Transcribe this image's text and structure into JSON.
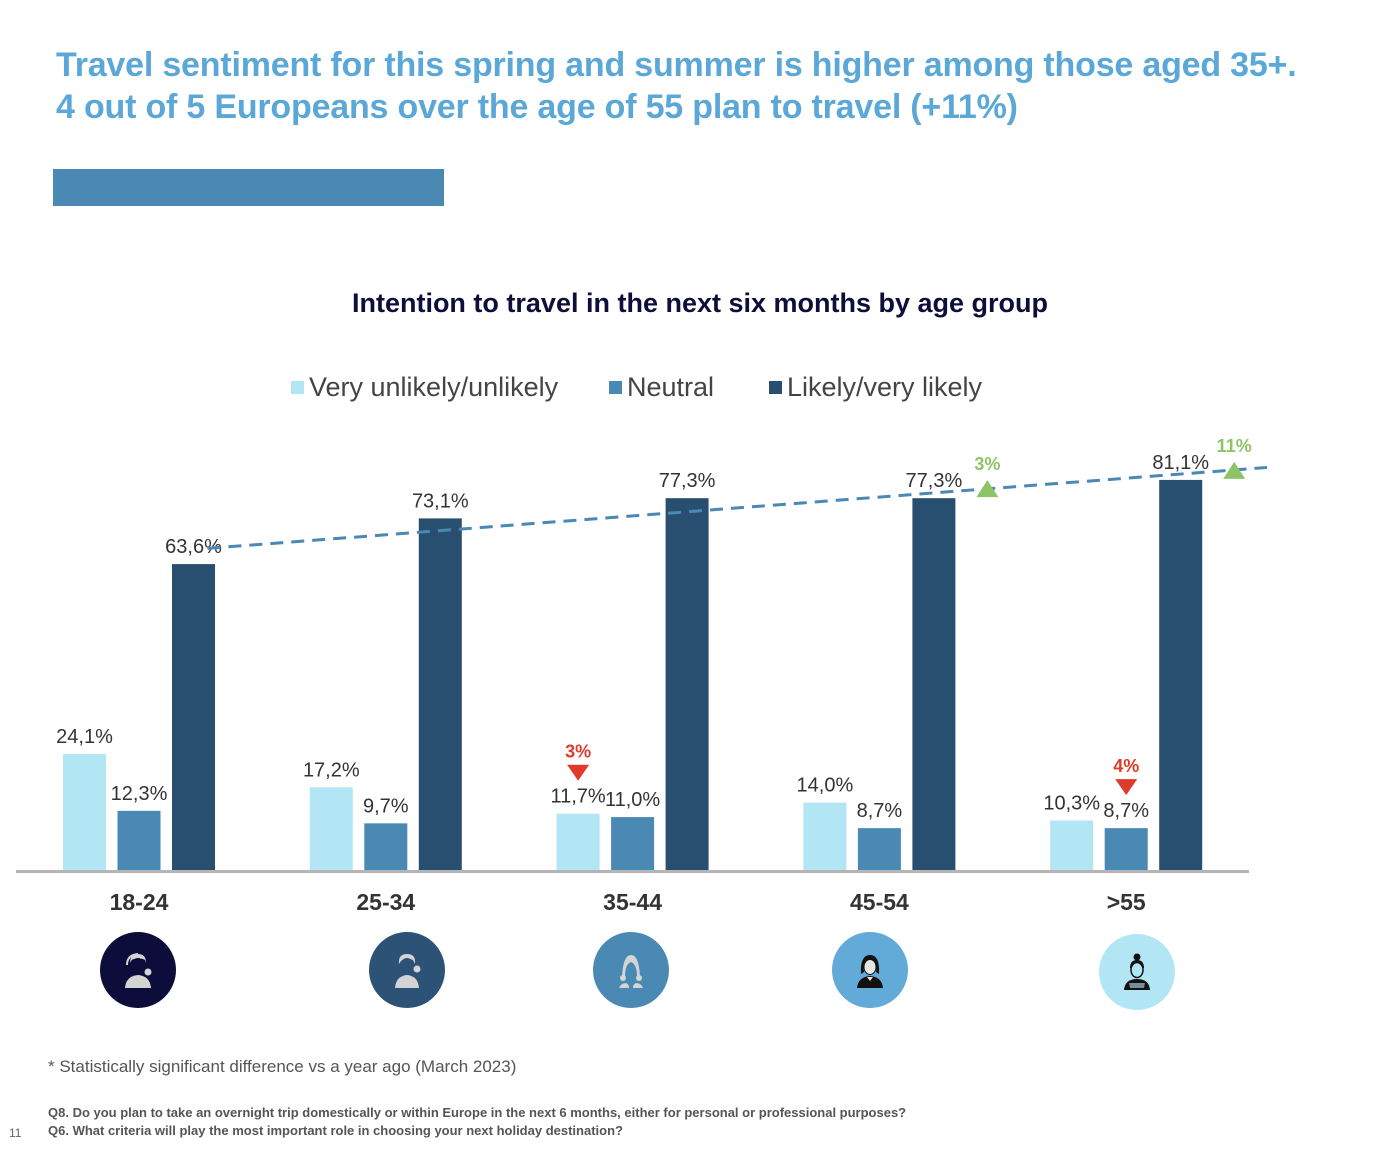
{
  "headline": {
    "line1": "Travel sentiment for this spring and summer is higher among those aged 35+.",
    "line2": "4 out of 5 Europeans over the age of 55 plan to travel (+11%)"
  },
  "colors": {
    "headline": "#5ba8d8",
    "accent_bar": "#4a89b4",
    "very_unlikely": "#b3e6f5",
    "neutral": "#4a89b4",
    "likely": "#284f70",
    "trend": "#4a89b4",
    "increase": "#8cc466",
    "decrease": "#e03a2a"
  },
  "chart_data": {
    "type": "bar",
    "title": "Intention to travel in the next six months by age group",
    "xlabel": "",
    "ylabel": "",
    "ylim": [
      0,
      100
    ],
    "grid": false,
    "legend_position": "top-center",
    "categories": [
      "18-24",
      "25-34",
      "35-44",
      "45-54",
      ">55"
    ],
    "series": [
      {
        "name": "Very unlikely/unlikely",
        "color": "#b3e6f5",
        "values": [
          24.1,
          17.2,
          11.7,
          14.0,
          10.3
        ],
        "labels": [
          "24,1%",
          "17,2%",
          "11,7%",
          "14,0%",
          "10,3%"
        ]
      },
      {
        "name": "Neutral",
        "color": "#4a89b4",
        "values": [
          12.3,
          9.7,
          11.0,
          8.7,
          8.7
        ],
        "labels": [
          "12,3%",
          "9,7%",
          "11,0%",
          "8,7%",
          "8,7%"
        ]
      },
      {
        "name": "Likely/very likely",
        "color": "#284f70",
        "values": [
          63.6,
          73.1,
          77.3,
          77.3,
          81.1
        ],
        "labels": [
          "63,6%",
          "73,1%",
          "77,3%",
          "77,3%",
          "81,1%"
        ]
      }
    ],
    "trendline": {
      "series": "Likely/very likely",
      "style": "dashed"
    },
    "annotations": [
      {
        "category": "35-44",
        "series": "Very unlikely/unlikely",
        "text": "3%",
        "direction": "down"
      },
      {
        "category": "45-54",
        "series": "Likely/very likely",
        "text": "3%",
        "direction": "up"
      },
      {
        "category": ">55",
        "series": "Neutral",
        "text": "4%",
        "direction": "down"
      },
      {
        "category": ">55",
        "series": "Likely/very likely",
        "text": "11%",
        "direction": "up"
      }
    ]
  },
  "age_icons": [
    {
      "category": "18-24",
      "icon": "young-man-headphones-icon",
      "color": "#0d0d3b",
      "figure": "#d4d4d4"
    },
    {
      "category": "25-34",
      "icon": "man-headphones-icon",
      "color": "#2c5376",
      "figure": "#d4d4d4"
    },
    {
      "category": "35-44",
      "icon": "woman-icon",
      "color": "#4a89b4",
      "figure": "#d4d4d4"
    },
    {
      "category": "45-54",
      "icon": "businesswoman-icon",
      "color": "#62aad8",
      "figure": "#111111"
    },
    {
      "category": ">55",
      "icon": "woman-bun-icon",
      "color": "#b3e6f5",
      "figure": "#111111"
    }
  ],
  "footnote": "* Statistically significant difference vs a year ago (March 2023)",
  "questions": [
    "Q8. Do you plan to take an overnight trip domestically or within Europe in the next 6 months, either for personal or professional purposes?",
    "Q6. What criteria will play the most important role in choosing your next holiday destination?"
  ],
  "page_number": "11"
}
